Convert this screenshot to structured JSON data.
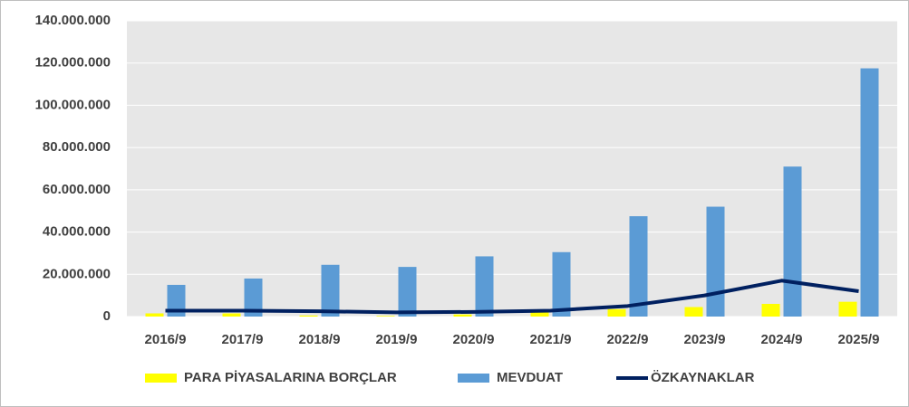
{
  "chart_data": {
    "type": "bar",
    "categories": [
      "2016/9",
      "2017/9",
      "2018/9",
      "2019/9",
      "2020/9",
      "2021/9",
      "2022/9",
      "2023/9",
      "2024/9",
      "2025/9"
    ],
    "series": [
      {
        "name": "PARA PİYASALARINA BORÇLAR",
        "color": "#ffff00",
        "kind": "bar",
        "values": [
          1500000,
          1500000,
          500000,
          300000,
          1000000,
          2000000,
          3500000,
          4500000,
          6000000,
          7000000
        ]
      },
      {
        "name": "MEVDUAT",
        "color": "#5b9bd5",
        "kind": "bar",
        "values": [
          15000000,
          18000000,
          24500000,
          23500000,
          28500000,
          30500000,
          47500000,
          52000000,
          71000000,
          117500000
        ]
      },
      {
        "name": "ÖZKAYNAKLAR",
        "color": "#002060",
        "kind": "line",
        "values": [
          2800000,
          2800000,
          2500000,
          2000000,
          2200000,
          2800000,
          5000000,
          10000000,
          17000000,
          12000000
        ]
      }
    ],
    "ylim": [
      0,
      140000000
    ],
    "yticks": [
      0,
      {
        "value": 20000000,
        "label": "20.000.000"
      },
      {
        "value": 40000000,
        "label": "40.000.000"
      },
      {
        "value": 60000000,
        "label": "60.000.000"
      },
      {
        "value": 80000000,
        "label": "80.000.000"
      },
      {
        "value": 100000000,
        "label": "100.000.000"
      },
      {
        "value": 120000000,
        "label": "120.000.000"
      },
      {
        "value": 140000000,
        "label": "140.000.000"
      }
    ],
    "grid": true,
    "plot_background": "#e7e7e7",
    "legend": "bottom"
  }
}
